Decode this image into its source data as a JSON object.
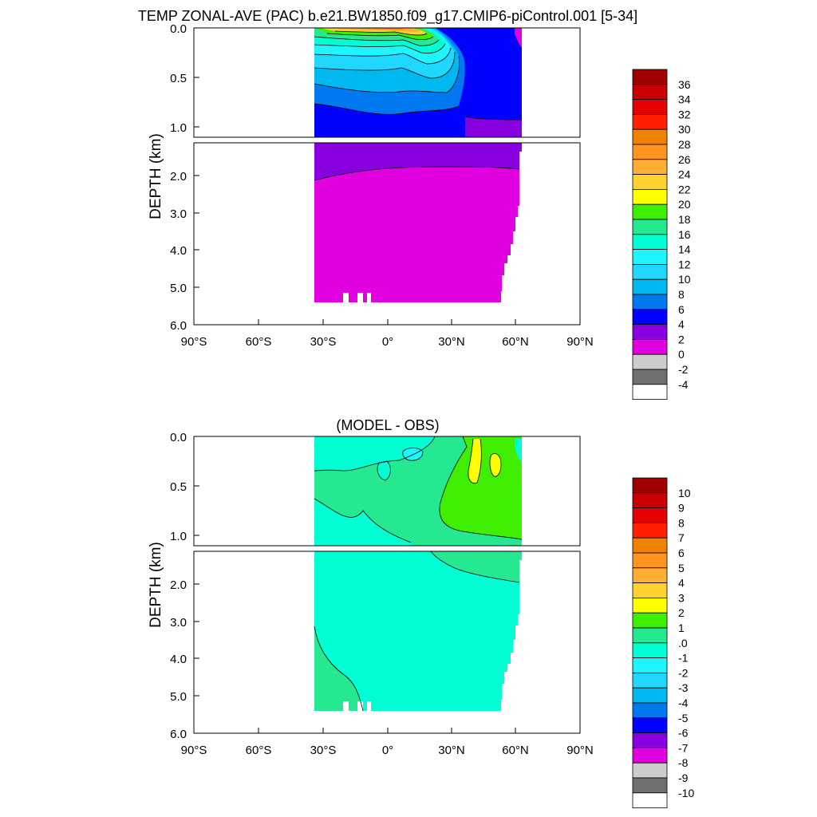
{
  "figure": {
    "title": "TEMP ZONAL-AVE (PAC) b.e21.BW1850.f09_g17.CMIP6-piControl.001 [5-34]"
  },
  "chart_data": [
    {
      "type": "contour",
      "title": "TEMP ZONAL-AVE (PAC) b.e21.BW1850.f09_g17.CMIP6-piControl.001 [5-34]",
      "ylabel": "DEPTH (km)",
      "xlabel": "",
      "x_ticks": [
        "90°S",
        "60°S",
        "30°S",
        "0°",
        "30°N",
        "60°N",
        "90°N"
      ],
      "x_tick_values": [
        -90,
        -60,
        -30,
        0,
        30,
        60,
        90
      ],
      "xlim": [
        -90,
        90
      ],
      "upper_panel": {
        "ylim": [
          0,
          1.1
        ],
        "y_ticks": [
          "0.0",
          "0.5",
          "1.0"
        ],
        "y_tick_values": [
          0,
          0.5,
          1.0
        ]
      },
      "lower_panel": {
        "ylim": [
          1.1,
          6.0
        ],
        "y_ticks": [
          "2.0",
          "3.0",
          "4.0",
          "5.0",
          "6.0"
        ],
        "y_tick_values": [
          2,
          3,
          4,
          5,
          6
        ]
      },
      "colorbar": {
        "labels": [
          "36",
          "34",
          "32",
          "30",
          "28",
          "26",
          "24",
          "22",
          "20",
          "18",
          "16",
          "14",
          "12",
          "10",
          "8",
          "6",
          "4",
          "2",
          "0",
          "-2",
          "-4"
        ],
        "colors": [
          "#a00000",
          "#c80000",
          "#e40000",
          "#ff2000",
          "#ef8000",
          "#ff9520",
          "#ffae35",
          "#ffd030",
          "#ffff00",
          "#40ef00",
          "#25e990",
          "#00ffd2",
          "#20f5ff",
          "#20d8ff",
          "#00b8f0",
          "#0078f0",
          "#0000ff",
          "#8800e0",
          "#e000e0",
          "#cccccc",
          "#707070",
          "#ffffff"
        ]
      }
    },
    {
      "type": "contour",
      "title": "(MODEL - OBS)",
      "ylabel": "DEPTH (km)",
      "xlabel": "",
      "x_ticks": [
        "90°S",
        "60°S",
        "30°S",
        "0°",
        "30°N",
        "60°N",
        "90°N"
      ],
      "x_tick_values": [
        -90,
        -60,
        -30,
        0,
        30,
        60,
        90
      ],
      "xlim": [
        -90,
        90
      ],
      "upper_panel": {
        "ylim": [
          0,
          1.1
        ],
        "y_ticks": [
          "0.0",
          "0.5",
          "1.0"
        ],
        "y_tick_values": [
          0,
          0.5,
          1.0
        ]
      },
      "lower_panel": {
        "ylim": [
          1.1,
          6.0
        ],
        "y_ticks": [
          "2.0",
          "3.0",
          "4.0",
          "5.0",
          "6.0"
        ],
        "y_tick_values": [
          2,
          3,
          4,
          5,
          6
        ]
      },
      "colorbar": {
        "labels": [
          "10",
          "9",
          "8",
          "7",
          "6",
          "5",
          "4",
          "3",
          "2",
          "1",
          ".0",
          "-1",
          "-2",
          "-3",
          "-4",
          "-5",
          "-6",
          "-7",
          "-8",
          "-9",
          "-10"
        ],
        "colors": [
          "#a00000",
          "#c80000",
          "#e40000",
          "#ff2000",
          "#ef8000",
          "#ff9520",
          "#ffae35",
          "#ffd030",
          "#ffff00",
          "#40ef00",
          "#25e990",
          "#00ffd2",
          "#20f5ff",
          "#20d8ff",
          "#00b8f0",
          "#0078f0",
          "#0000ff",
          "#8800e0",
          "#e000e0",
          "#cccccc",
          "#707070",
          "#ffffff"
        ]
      }
    }
  ]
}
